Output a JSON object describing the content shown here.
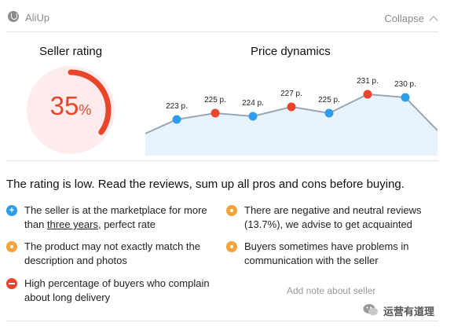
{
  "header": {
    "app_name": "AliUp",
    "collapse_label": "Collapse"
  },
  "rating": {
    "title": "Seller rating",
    "value": 35,
    "value_text": "35",
    "unit": "%",
    "color": "#e8452c",
    "track_color": "#fdeceb"
  },
  "price": {
    "title": "Price dynamics",
    "line_color": "#9aa7b3",
    "fill_color": "#e6f3fc",
    "chart_data": {
      "type": "line",
      "x": [
        1,
        2,
        3,
        4,
        5,
        6,
        7
      ],
      "values": [
        223,
        225,
        224,
        227,
        225,
        231,
        230
      ],
      "labels": [
        "223 р.",
        "225 р.",
        "224 р.",
        "227 р.",
        "225 р.",
        "231 р.",
        "230 р."
      ],
      "point_colors": [
        "#2d9ceb",
        "#e8452c",
        "#2d9ceb",
        "#e8452c",
        "#2d9ceb",
        "#e8452c",
        "#2d9ceb"
      ],
      "trailing_value": 225
    }
  },
  "summary": "The rating is low. Read the reviews, sum up all pros and cons before buying.",
  "notes": [
    {
      "icon": "plus-icon",
      "text_before": "The seller is at the marketplace for more than ",
      "link": "three years",
      "text_after": ", perfect rate"
    },
    {
      "icon": "dot-icon",
      "text": "There are negative and neutral reviews (13.7%), we advise to get acquainted"
    },
    {
      "icon": "dot-icon",
      "text": "The product may not exactly match the description and photos"
    },
    {
      "icon": "dot-icon",
      "text": "Buyers sometimes have problems in communication with the seller"
    },
    {
      "icon": "minus-icon",
      "text": "High percentage of buyers who complain about long delivery"
    }
  ],
  "add_note_label": "Add note about seller",
  "watermark": {
    "text": "运营有道理"
  }
}
